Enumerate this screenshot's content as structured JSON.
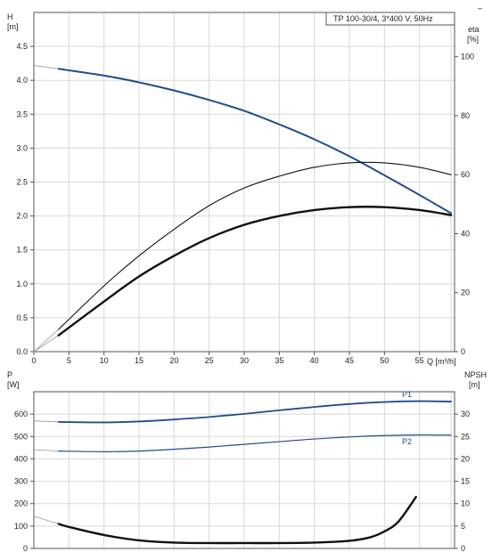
{
  "header": {
    "pump_label": "TP 100-30/4, 3*400 V, 50Hz",
    "corner_mark": "_"
  },
  "top_panel": {
    "left_axis_name": "H",
    "left_axis_unit": "[m]",
    "right_axis_name": "eta",
    "right_axis_unit": "[%]",
    "x_axis_label": "Q [m³/h]",
    "x_ticks": [
      "0",
      "5",
      "10",
      "15",
      "20",
      "25",
      "30",
      "35",
      "40",
      "45",
      "50",
      "55"
    ],
    "y_ticks": [
      "0.0",
      "0.5",
      "1.0",
      "1.5",
      "2.0",
      "2.5",
      "3.0",
      "3.5",
      "4.0",
      "4.5"
    ],
    "eta_ticks": [
      "0",
      "20",
      "40",
      "60",
      "80",
      "100"
    ]
  },
  "bottom_panel": {
    "left_axis_name": "P",
    "left_axis_unit": "[W]",
    "right_axis_name": "NPSH",
    "right_axis_unit": "[m]",
    "y_ticks": [
      "0",
      "100",
      "200",
      "300",
      "400",
      "500",
      "600"
    ],
    "npsh_ticks": [
      "0",
      "5",
      "10",
      "15",
      "20",
      "25",
      "30"
    ],
    "label_p1": "P1",
    "label_p2": "P2"
  },
  "colors": {
    "head": "#1f4e8c",
    "efficiency": "#111111",
    "power": "#1f4e8c",
    "npsh": "#111111",
    "grid": "#d8d8d8",
    "extrapolation": "#999999"
  },
  "chart_data": [
    {
      "type": "line",
      "title": "TP 100-30/4, 3*400 V, 50Hz",
      "xlabel": "Q [m³/h]",
      "ylabel": "H [m]",
      "y2label": "eta [%]",
      "xlim": [
        0,
        60
      ],
      "ylim": [
        0,
        5
      ],
      "y2lim": [
        0,
        115
      ],
      "grid": true,
      "series": [
        {
          "name": "H",
          "axis": "left",
          "color": "#1f4e8c",
          "x": [
            3.5,
            10,
            15,
            20,
            25,
            30,
            35,
            40,
            45,
            50,
            55,
            59.5
          ],
          "values": [
            4.17,
            4.07,
            3.97,
            3.85,
            3.71,
            3.55,
            3.35,
            3.13,
            2.88,
            2.6,
            2.31,
            2.04
          ]
        },
        {
          "name": "",
          "axis": "right",
          "color": "#111111",
          "x": [
            3.5,
            10,
            15,
            20,
            25,
            30,
            35,
            40,
            45,
            50,
            55,
            59.5
          ],
          "values": [
            5.5,
            17,
            25.5,
            32.5,
            38.5,
            43,
            46,
            48,
            49,
            49,
            48,
            46.3
          ]
        },
        {
          "name": "",
          "axis": "right",
          "color": "#111111",
          "x": [
            3.5,
            10,
            15,
            20,
            25,
            30,
            35,
            40,
            45,
            50,
            55,
            59.5
          ],
          "values": [
            7.5,
            22.3,
            32.5,
            41.5,
            49.5,
            55.5,
            59.5,
            62.5,
            64,
            64,
            62.5,
            60
          ]
        }
      ]
    },
    {
      "type": "line",
      "xlabel": "Q [m³/h]",
      "ylabel": "P [W]",
      "y2label": "NPSH [m]",
      "xlim": [
        0,
        60
      ],
      "ylim": [
        0,
        700
      ],
      "y2lim": [
        0,
        35
      ],
      "grid": true,
      "series": [
        {
          "name": "P1",
          "axis": "left",
          "color": "#1f4e8c",
          "x": [
            3.5,
            10,
            15,
            20,
            25,
            30,
            35,
            40,
            45,
            50,
            55,
            59.5
          ],
          "values": [
            565,
            563,
            567,
            576,
            587,
            601,
            617,
            632,
            645,
            654,
            658,
            656
          ]
        },
        {
          "name": "P2",
          "axis": "left",
          "color": "#1f4e8c",
          "x": [
            3.5,
            10,
            15,
            20,
            25,
            30,
            35,
            40,
            45,
            50,
            55,
            59.5
          ],
          "values": [
            435,
            432,
            435,
            443,
            453,
            465,
            477,
            489,
            498,
            504,
            507,
            506
          ]
        },
        {
          "name": "",
          "axis": "right",
          "color": "#111111",
          "x": [
            3.5,
            5,
            10,
            15,
            20,
            25,
            30,
            35,
            40,
            45,
            48,
            50,
            52,
            54.5
          ],
          "values": [
            5.5,
            4.8,
            3,
            1.8,
            1.3,
            1.2,
            1.2,
            1.2,
            1.3,
            1.7,
            2.5,
            3.8,
            6,
            11.5
          ]
        }
      ]
    }
  ]
}
